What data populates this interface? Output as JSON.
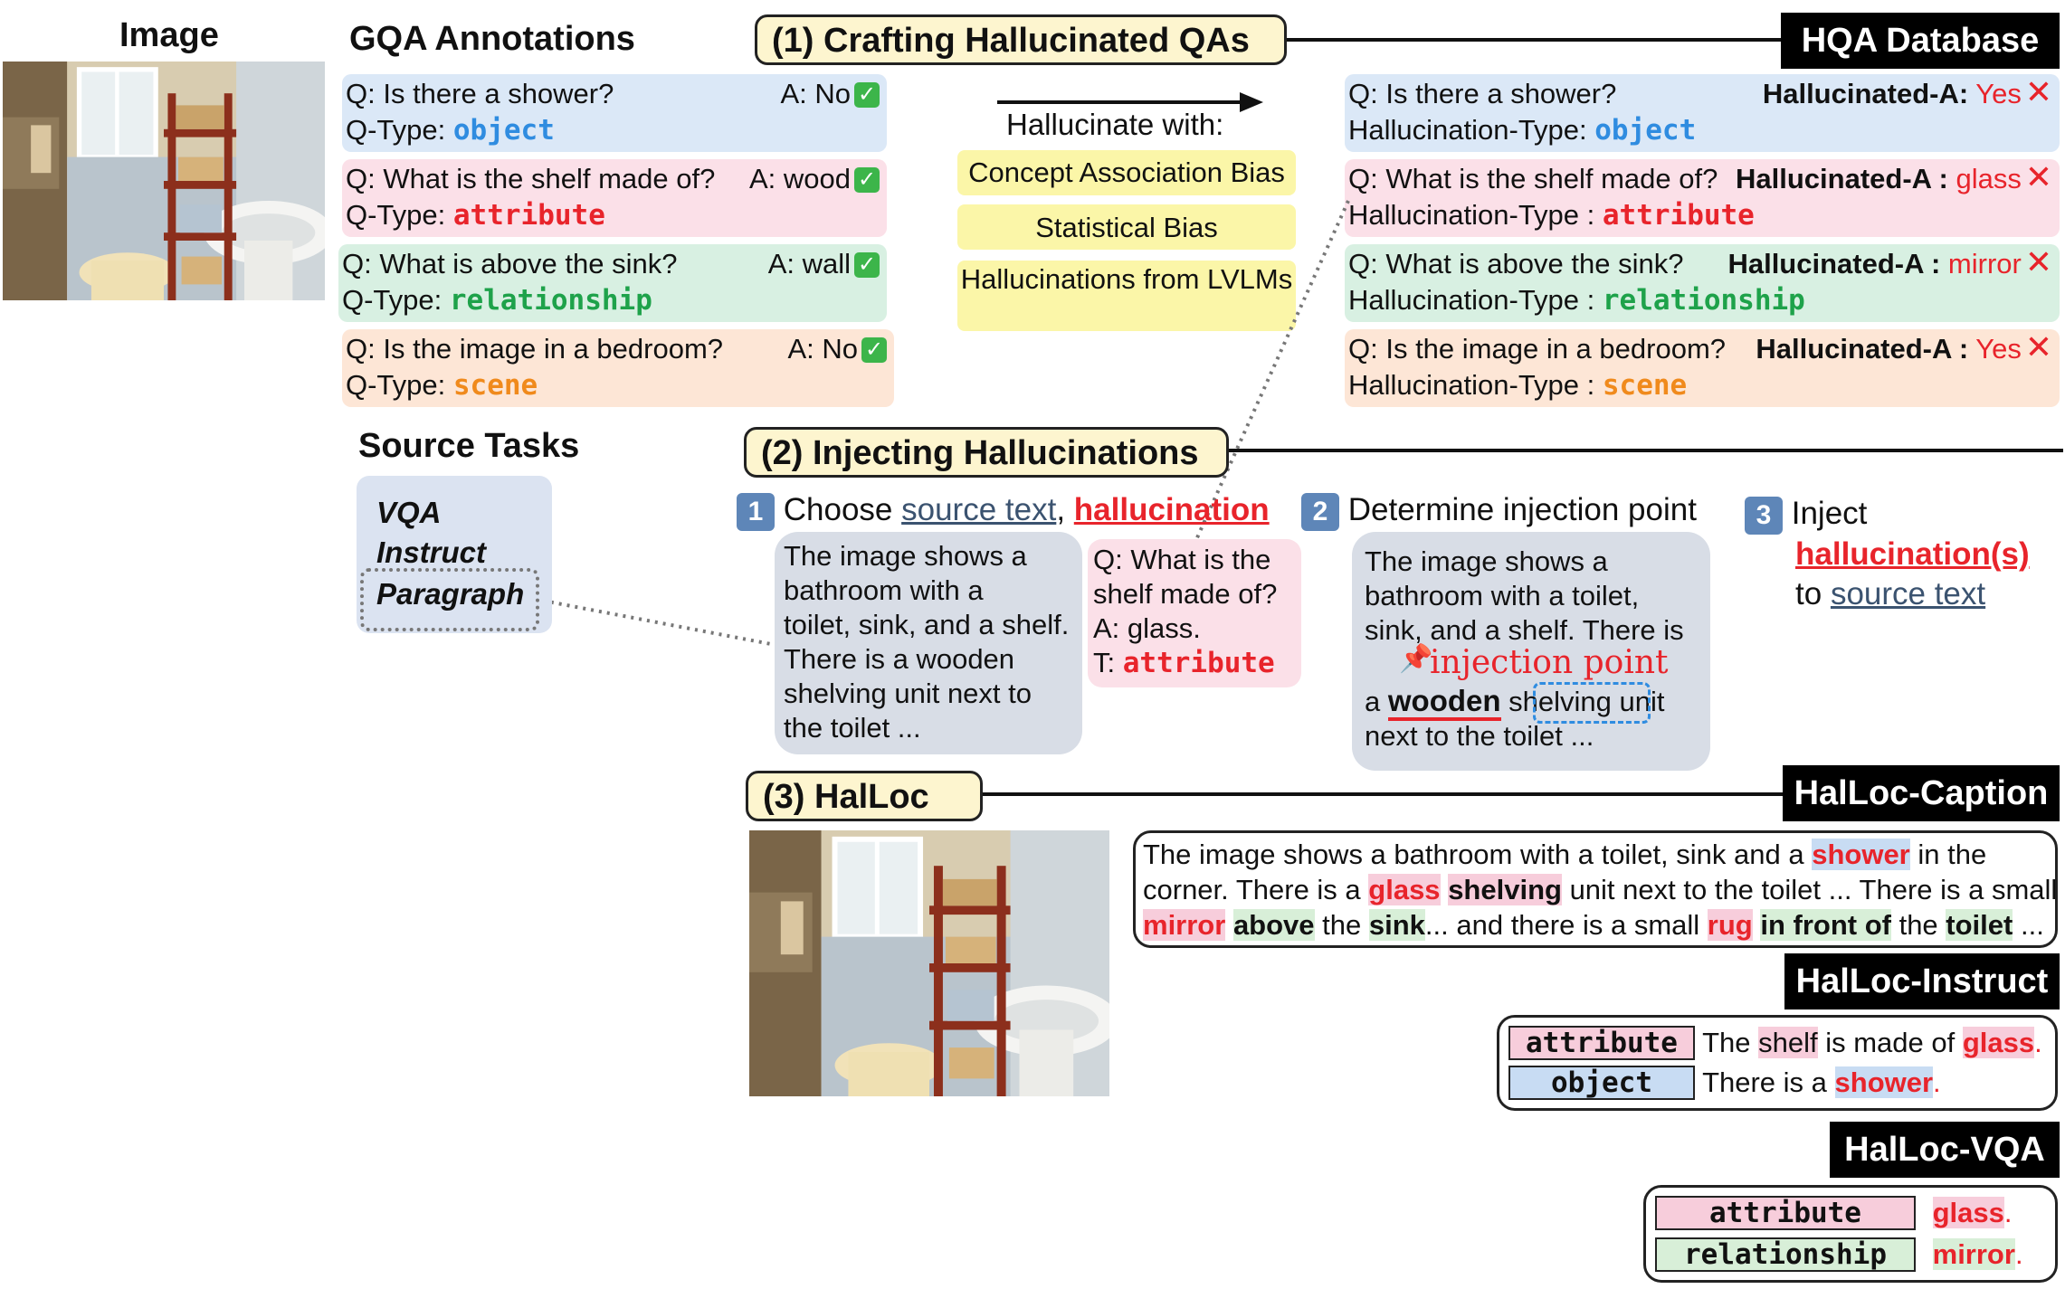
{
  "colors": {
    "object": "#2f8ce0",
    "attribute": "#e8242b",
    "relationship": "#1ea24a",
    "scene": "#f08a1c",
    "hallucination": "#e8242b",
    "source": "#3b5370"
  },
  "image_col": {
    "title": "Image"
  },
  "gqa": {
    "title": "GQA Annotations",
    "items": [
      {
        "q": "Q: Is there a shower?",
        "a": "A: No",
        "type_label": "Q-Type:",
        "type": "object"
      },
      {
        "q": "Q: What is the shelf made of?",
        "a": "A: wood",
        "type_label": "Q-Type:",
        "type": "attribute"
      },
      {
        "q": "Q: What is above the sink?",
        "a": "A: wall",
        "type_label": "Q-Type:",
        "type": "relationship"
      },
      {
        "q": "Q: Is the image in a bedroom?",
        "a": "A: No",
        "type_label": "Q-Type:",
        "type": "scene"
      }
    ]
  },
  "step1": {
    "title": "(1) Crafting Hallucinated QAs",
    "hallucinate_with": "Hallucinate with:",
    "biases": [
      "Concept Association Bias",
      "Statistical Bias",
      "Hallucinations from LVLMs"
    ]
  },
  "hqa": {
    "title": "HQA Database",
    "items": [
      {
        "q": "Q: Is there a shower?",
        "a_label": "Hallucinated-A:",
        "a": "Yes",
        "type_label": "Hallucination-Type:",
        "type": "object"
      },
      {
        "q": "Q: What is the shelf made of?",
        "a_label": "Hallucinated-A :",
        "a": "glass",
        "type_label": "Hallucination-Type :",
        "type": "attribute"
      },
      {
        "q": "Q: What is above the sink?",
        "a_label": "Hallucinated-A :",
        "a": "mirror",
        "type_label": "Hallucination-Type :",
        "type": "relationship"
      },
      {
        "q": "Q: Is the image in a bedroom?",
        "a_label": "Hallucinated-A :",
        "a": "Yes",
        "type_label": "Hallucination-Type :",
        "type": "scene"
      }
    ]
  },
  "source_tasks": {
    "title": "Source Tasks",
    "items": [
      "VQA",
      "Instruct",
      "Paragraph"
    ]
  },
  "step2": {
    "title": "(2) Injecting Hallucinations",
    "s1": {
      "num": "1",
      "choose": "Choose",
      "source_text": "source text",
      "comma": ",",
      "hallucination": "hallucination"
    },
    "source_bubble": [
      "The image shows a",
      "bathroom with a",
      "toilet, sink, and a shelf.",
      "There is a wooden",
      "shelving unit next to",
      "the toilet ..."
    ],
    "hal_bubble": {
      "q": [
        "Q: What is the",
        "shelf made of?"
      ],
      "a": "A: glass.",
      "t_label": "T:",
      "t": "attribute"
    },
    "s2": {
      "num": "2",
      "label": "Determine injection point"
    },
    "inj_bubble": {
      "lines": [
        "The image shows a",
        "bathroom with a toilet,",
        "sink, and a shelf. There is"
      ],
      "marker": "injection point",
      "pre": "a",
      "wooden": "wooden",
      "shelving": "shelving unit",
      "end": "next to the toilet ..."
    },
    "s3": {
      "num": "3",
      "inject": "Inject",
      "hal": "hallucination(s)",
      "to": "to",
      "src": "source text"
    }
  },
  "step3": {
    "title": "(3) HalLoc"
  },
  "caption": {
    "title": "HalLoc-Caption",
    "line1": [
      "The image shows a bathroom with a toilet, sink and a ",
      "shower",
      " in the"
    ],
    "line2": [
      "corner. There is a ",
      "glass",
      " ",
      "shelving",
      " unit next to the toilet ... There is a small"
    ],
    "line3": [
      "mirror",
      " ",
      "above",
      " the ",
      "sink",
      "... and there is a small ",
      "rug",
      " ",
      "in front of",
      " the ",
      "toilet",
      " ..."
    ]
  },
  "instruct": {
    "title": "HalLoc-Instruct",
    "rows": [
      {
        "tag": "attribute",
        "pre": "The ",
        "hl": "shelf",
        "mid": " is made of ",
        "val": "glass",
        "end": "."
      },
      {
        "tag": "object",
        "pre": "There is a ",
        "hl": "",
        "mid": "",
        "val": "shower",
        "end": "."
      }
    ]
  },
  "vqa": {
    "title": "HalLoc-VQA",
    "rows": [
      {
        "tag": "attribute",
        "val": "glass",
        "end": "."
      },
      {
        "tag": "relationship",
        "val": "mirror",
        "end": "."
      }
    ]
  }
}
